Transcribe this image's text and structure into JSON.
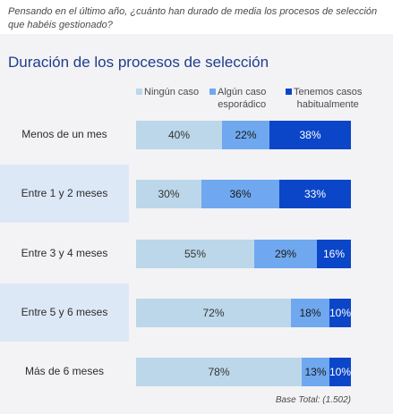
{
  "question": "Pensando en el último año, ¿cuánto han durado de media los procesos de selección que habéis gestionado?",
  "footnote": "Base Total: (1.502)",
  "colors": {
    "none": "#bcd7ea",
    "occasional": "#6fa8ee",
    "habitual": "#0b46c8",
    "title": "#1f3d8c",
    "band": "#dde8f7"
  },
  "chart_data": {
    "type": "bar",
    "orientation": "horizontal",
    "stacked": true,
    "title": "Duración de los procesos de selección",
    "categories": [
      "Menos de un mes",
      "Entre 1 y 2 meses",
      "Entre 3 y 4 meses",
      "Entre 5 y 6 meses",
      "Más de 6 meses"
    ],
    "series": [
      {
        "name": "Ningún caso",
        "values": [
          40,
          30,
          55,
          72,
          78
        ]
      },
      {
        "name": "Algún caso esporádico",
        "values": [
          22,
          36,
          29,
          18,
          13
        ]
      },
      {
        "name": "Tenemos casos habitualmente",
        "values": [
          38,
          33,
          16,
          10,
          10
        ]
      }
    ],
    "value_suffix": "%",
    "highlighted_rows": [
      "Entre 1 y 2 meses",
      "Entre 5 y 6 meses"
    ],
    "legend_position": "top"
  }
}
